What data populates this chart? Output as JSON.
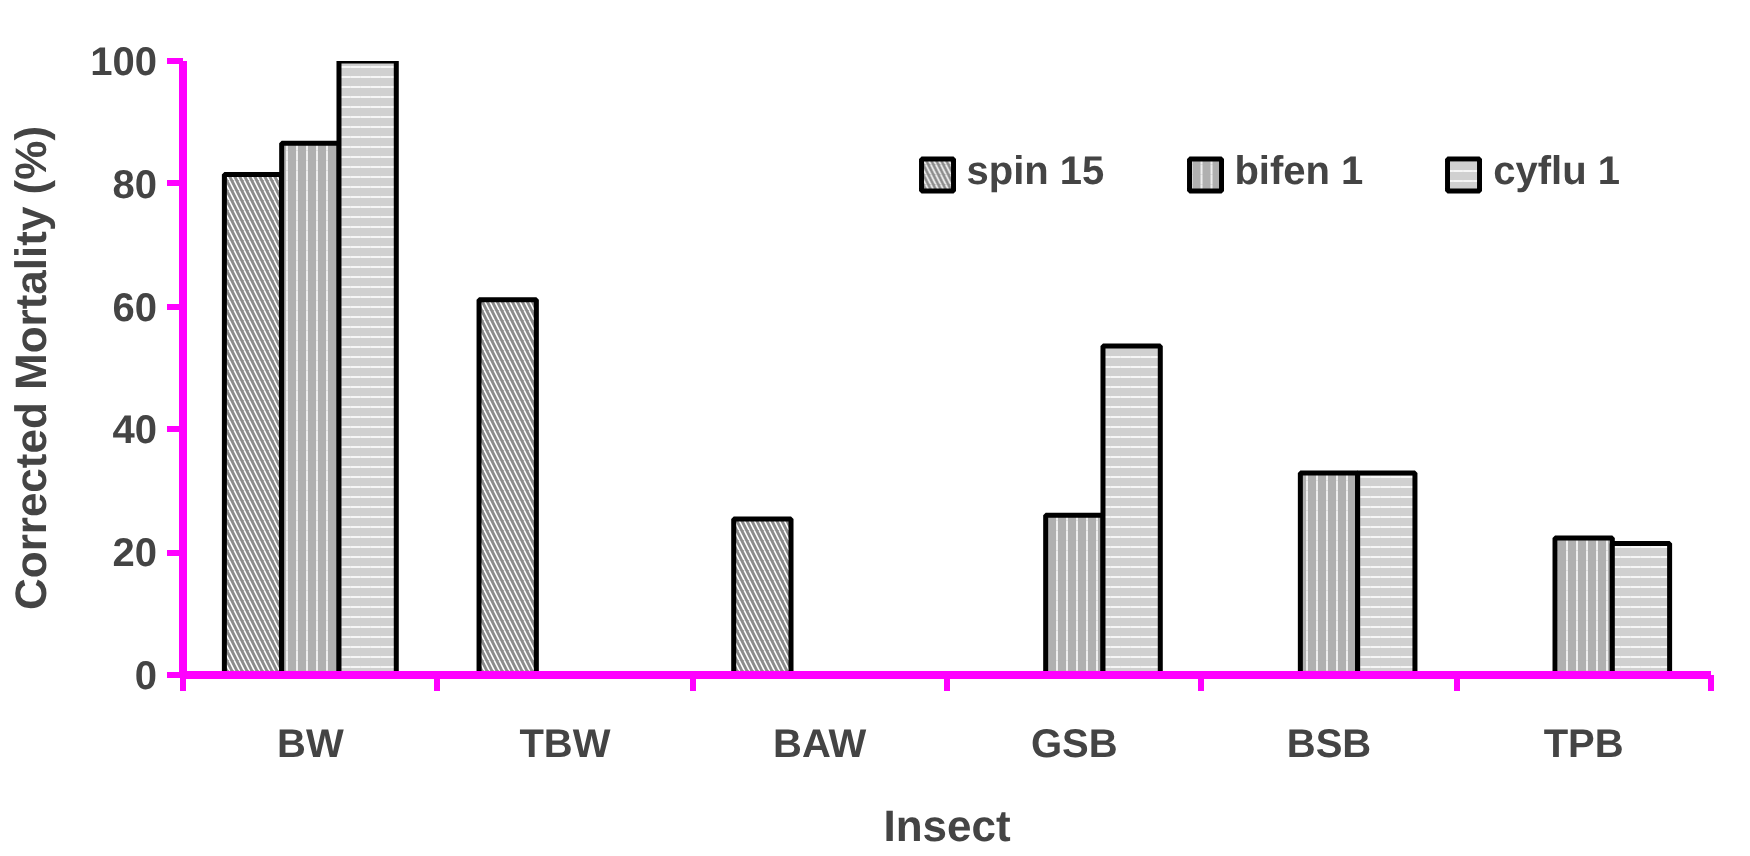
{
  "chart_data": {
    "type": "bar",
    "xlabel": "Insect",
    "ylabel": "Corrected Mortality (%)",
    "categories": [
      "BW",
      "TBW",
      "BAW",
      "GSB",
      "BSB",
      "TPB"
    ],
    "series": [
      {
        "name": "spin 15",
        "color": "#8c8c8c",
        "values": [
          81.5,
          61.1,
          25.4,
          null,
          null,
          null
        ]
      },
      {
        "name": "bifen 1",
        "color": "#b0b0b0",
        "values": [
          86.6,
          null,
          null,
          26,
          32.9,
          22.3
        ]
      },
      {
        "name": "cyflu 1",
        "color": "#d0d0d0",
        "values": [
          100,
          null,
          null,
          53.6,
          32.9,
          21.4
        ]
      }
    ],
    "ylim": [
      0,
      100
    ],
    "yticks": [
      0,
      20,
      40,
      60,
      80,
      100
    ],
    "grid": false,
    "legend": "top right"
  }
}
